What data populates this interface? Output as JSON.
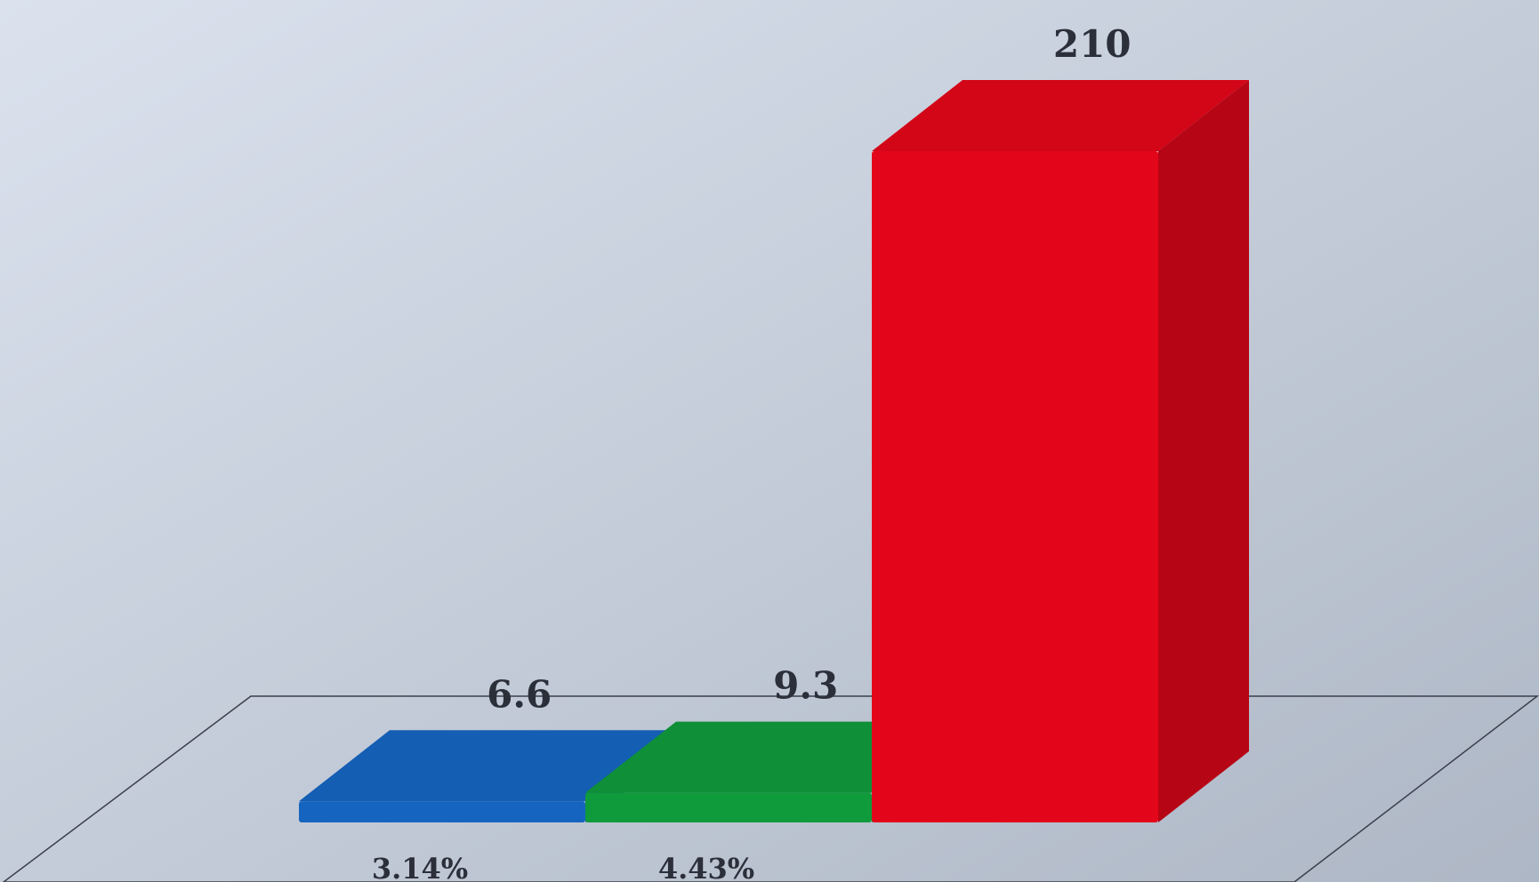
{
  "chart_data": {
    "type": "bar",
    "three_d": true,
    "categories": [
      "",
      "",
      ""
    ],
    "values": [
      6.6,
      9.3,
      210
    ],
    "value_labels": [
      "6.6",
      "9.3",
      "210"
    ],
    "percent_labels": [
      "3.14%",
      "4.43%",
      ""
    ],
    "colors": [
      "#1565c0",
      "#0f9a3c",
      "#e3061a"
    ],
    "ylim": [
      0,
      210
    ],
    "grid": false,
    "legend": "none",
    "title": "",
    "xlabel": "",
    "ylabel": ""
  }
}
